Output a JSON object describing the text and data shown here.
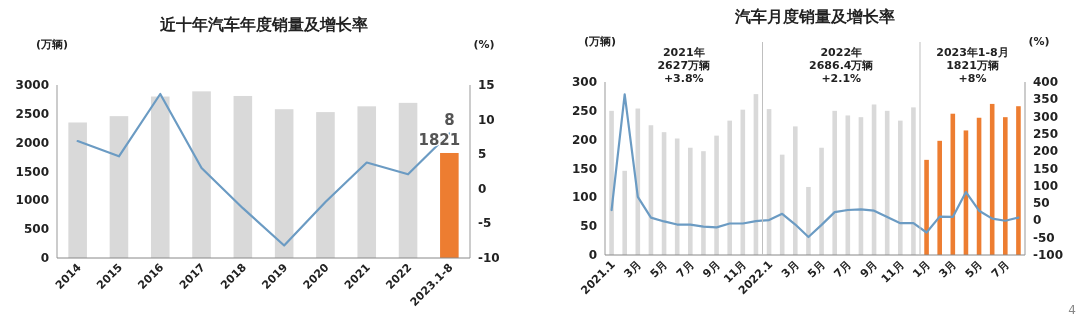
{
  "chart_data": [
    {
      "type": "bar",
      "title": "近十年汽车年度销量及增长率",
      "ylabel": "(万辆)",
      "y2label": "(%)",
      "categories": [
        "2014",
        "2015",
        "2016",
        "2017",
        "2018",
        "2019",
        "2020",
        "2021",
        "2022",
        "2023.1-8"
      ],
      "series": [
        {
          "colors": [
            "#d9d9d9",
            "#d9d9d9",
            "#d9d9d9",
            "#d9d9d9",
            "#d9d9d9",
            "#d9d9d9",
            "#d9d9d9",
            "#d9d9d9",
            "#d9d9d9",
            "#ed7d31"
          ],
          "values": [
            2350,
            2460,
            2800,
            2890,
            2810,
            2580,
            2530,
            2630,
            2690,
            1821
          ],
          "value_labels": [
            null,
            null,
            null,
            null,
            null,
            null,
            null,
            null,
            null,
            "1821"
          ]
        },
        {
          "type": "line",
          "axis": "y2",
          "color": "#6b9bc3",
          "values": [
            6.9,
            4.7,
            13.7,
            3.0,
            -2.8,
            -8.2,
            -1.9,
            3.8,
            2.1,
            8
          ],
          "value_labels": [
            null,
            null,
            null,
            null,
            null,
            null,
            null,
            null,
            null,
            "8"
          ]
        }
      ],
      "ylim": [
        0,
        3000
      ],
      "yticks": [
        0,
        500,
        1000,
        1500,
        2000,
        2500,
        3000
      ],
      "y2lim": [
        -10,
        15
      ],
      "y2ticks": [
        -10,
        -5,
        0,
        5,
        10,
        15
      ]
    },
    {
      "type": "bar",
      "title": "汽车月度销量及增长率",
      "ylabel": "(万辆)",
      "y2label": "(%)",
      "categories": [
        "2021.1",
        null,
        "3月",
        null,
        "5月",
        null,
        "7月",
        null,
        "9月",
        null,
        "11月",
        null,
        "2022.1",
        null,
        "3月",
        null,
        "5月",
        null,
        "7月",
        null,
        "9月",
        null,
        "11月",
        null,
        "1月",
        null,
        "3月",
        null,
        "5月",
        null,
        "7月",
        null
      ],
      "series": [
        {
          "colors": [
            "#d9d9d9",
            "#d9d9d9",
            "#d9d9d9",
            "#d9d9d9",
            "#d9d9d9",
            "#d9d9d9",
            "#d9d9d9",
            "#d9d9d9",
            "#d9d9d9",
            "#d9d9d9",
            "#d9d9d9",
            "#d9d9d9",
            "#d9d9d9",
            "#d9d9d9",
            "#d9d9d9",
            "#d9d9d9",
            "#d9d9d9",
            "#d9d9d9",
            "#d9d9d9",
            "#d9d9d9",
            "#d9d9d9",
            "#d9d9d9",
            "#d9d9d9",
            "#d9d9d9",
            "#ed7d31",
            "#ed7d31",
            "#ed7d31",
            "#ed7d31",
            "#ed7d31",
            "#ed7d31",
            "#ed7d31",
            "#ed7d31"
          ],
          "values": [
            250,
            146,
            254,
            225,
            213,
            202,
            186,
            180,
            207,
            233,
            252,
            279,
            253,
            174,
            223,
            118,
            186,
            250,
            242,
            239,
            261,
            250,
            233,
            256,
            165,
            198,
            245,
            216,
            238,
            262,
            239,
            258
          ]
        },
        {
          "type": "line",
          "axis": "y2",
          "color": "#6b9bc3",
          "values": [
            30,
            364,
            68,
            8,
            -3,
            -12,
            -12,
            -18,
            -20,
            -9,
            -9,
            -2,
            1,
            19,
            -12,
            -48,
            -13,
            24,
            30,
            32,
            28,
            10,
            -8,
            -8,
            -35,
            11,
            10,
            82,
            28,
            5,
            -1,
            8
          ]
        }
      ],
      "ylim": [
        0,
        300
      ],
      "yticks": [
        0,
        50,
        100,
        150,
        200,
        250,
        300
      ],
      "y2lim": [
        -100,
        400
      ],
      "y2ticks": [
        -100,
        -50,
        0,
        50,
        100,
        150,
        200,
        250,
        300,
        350,
        400
      ],
      "annotations": [
        "2021年\n2627万辆\n+3.8%",
        "2022年\n2686.4万辆\n+2.1%",
        "2023年1-8月\n1821万辆\n+8%",
        "4"
      ]
    }
  ]
}
